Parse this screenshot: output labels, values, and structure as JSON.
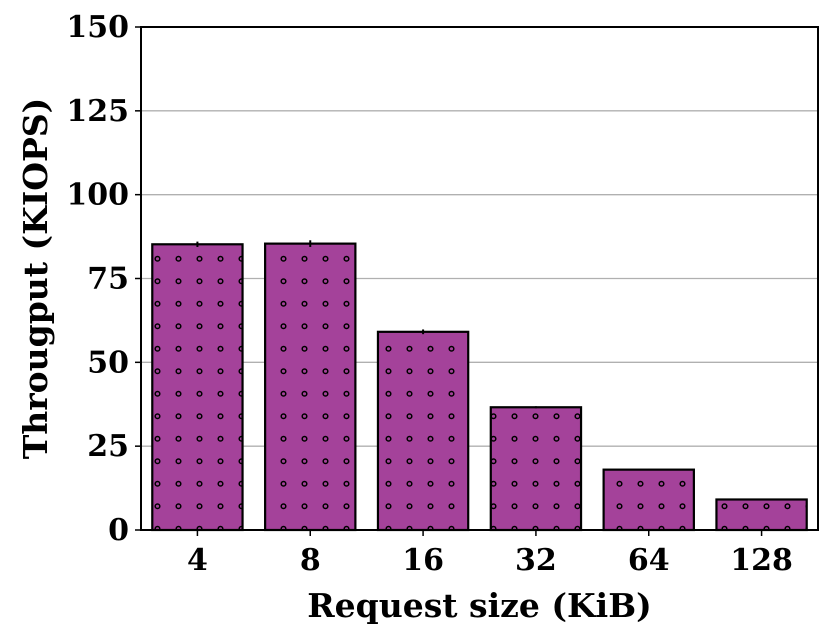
{
  "chart_data": {
    "type": "bar",
    "categories": [
      "4",
      "8",
      "16",
      "32",
      "64",
      "128"
    ],
    "values": [
      85.2,
      85.4,
      59.1,
      36.6,
      18.0,
      9.1
    ],
    "errors": [
      0.8,
      1.0,
      0.7,
      0.3,
      0.2,
      0.1
    ],
    "xlabel": "Request size (KiB)",
    "ylabel": "Througput (KIOPS)",
    "ylim": [
      0,
      150
    ],
    "yticks": [
      0,
      25,
      50,
      75,
      100,
      125,
      150
    ],
    "grid": "horizontal",
    "bar_color": "#a4429a",
    "edge_color": "#000000",
    "hatch": "dots"
  }
}
